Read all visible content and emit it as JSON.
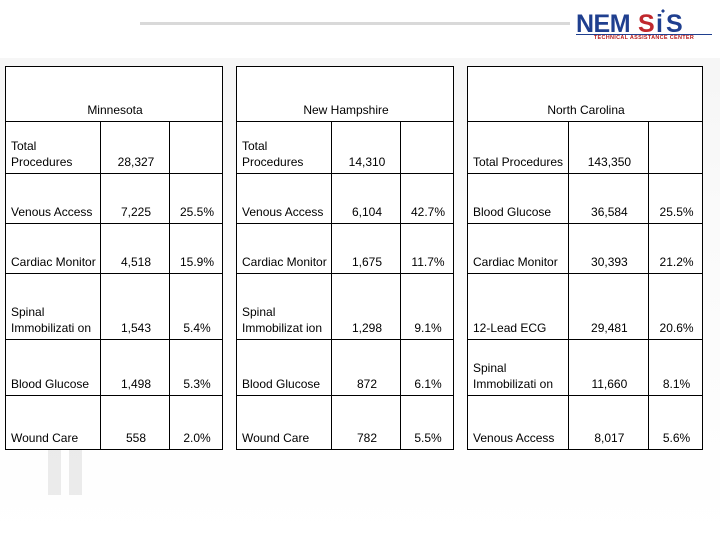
{
  "logo": {
    "wordmark": "NEMSIS",
    "subtitle": "TECHNICAL ASSISTANCE CENTER",
    "colors": {
      "blue": "#1f3f8f",
      "red": "#c0282d"
    }
  },
  "tables": [
    {
      "state": "Minnesota",
      "rows": [
        {
          "label": "Total Procedures",
          "count": "28,327",
          "pct": ""
        },
        {
          "label": "Venous Access",
          "count": "7,225",
          "pct": "25.5%"
        },
        {
          "label": "Cardiac Monitor",
          "count": "4,518",
          "pct": "15.9%"
        },
        {
          "label": "Spinal Immobilizati on",
          "count": "1,543",
          "pct": "5.4%"
        },
        {
          "label": "Blood Glucose",
          "count": "1,498",
          "pct": "5.3%"
        },
        {
          "label": "Wound Care",
          "count": "558",
          "pct": "2.0%"
        }
      ]
    },
    {
      "state": "New Hampshire",
      "rows": [
        {
          "label": "Total Procedures",
          "count": "14,310",
          "pct": ""
        },
        {
          "label": "Venous Access",
          "count": "6,104",
          "pct": "42.7%"
        },
        {
          "label": "Cardiac Monitor",
          "count": "1,675",
          "pct": "11.7%"
        },
        {
          "label": "Spinal Immobilizat ion",
          "count": "1,298",
          "pct": "9.1%"
        },
        {
          "label": "Blood Glucose",
          "count": "872",
          "pct": "6.1%"
        },
        {
          "label": "Wound Care",
          "count": "782",
          "pct": "5.5%"
        }
      ]
    },
    {
      "state": "North Carolina",
      "rows": [
        {
          "label": "Total Procedures",
          "count": "143,350",
          "pct": ""
        },
        {
          "label": "Blood Glucose",
          "count": "36,584",
          "pct": "25.5%"
        },
        {
          "label": "Cardiac Monitor",
          "count": "30,393",
          "pct": "21.2%"
        },
        {
          "label": "12-Lead ECG",
          "count": "29,481",
          "pct": "20.6%"
        },
        {
          "label": "Spinal Immobilizati on",
          "count": "11,660",
          "pct": "8.1%"
        },
        {
          "label": "Venous Access",
          "count": "8,017",
          "pct": "5.6%"
        }
      ]
    }
  ]
}
